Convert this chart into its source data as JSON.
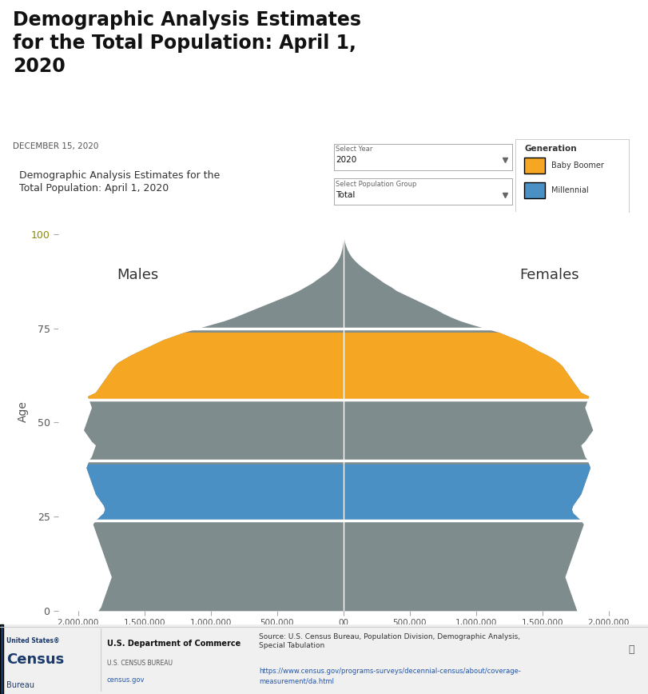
{
  "title_main": "Demographic Analysis Estimates\nfor the Total Population: April 1,\n2020",
  "date_label": "DECEMBER 15, 2020",
  "subtitle": "Demographic Analysis Estimates for the\nTotal Population: April 1, 2020",
  "males_label": "Males",
  "females_label": "Females",
  "ylabel_age": "Age",
  "x_ticks": [
    -2000000,
    -1500000,
    -1000000,
    -500000,
    0,
    500000,
    1000000,
    1500000,
    2000000
  ],
  "x_tick_labels": [
    "2,000,000",
    "1,500,000",
    "1,000,000",
    "500,000",
    "00",
    "500,000",
    "1,000,000",
    "1,500,000",
    "2,000,000"
  ],
  "y_ticks": [
    0,
    25,
    50,
    75,
    100
  ],
  "xlim": [
    -2150000,
    2150000
  ],
  "ylim": [
    0,
    106
  ],
  "color_gray": "#7F8C8D",
  "color_orange": "#F5A623",
  "color_blue": "#4A90C4",
  "background_color": "#FFFFFF",
  "source_text": "Source: U.S. Census Bureau, Population Division, Demographic Analysis,\nSpecial Tabulation",
  "url_text": "https://www.census.gov/programs-surveys/decennial-census/about/coverage-\nmeasurement/da.html",
  "legend_title": "Generation",
  "legend_items": [
    "Baby Boomer",
    "Millennial"
  ],
  "legend_colors": [
    "#F5A623",
    "#4A90C4"
  ],
  "select_year_label": "Select Year",
  "select_year_value": "2020",
  "select_group_label": "Select Population Group",
  "select_group_value": "Total",
  "boomer_min": 56,
  "boomer_max": 74,
  "millennial_min": 24,
  "millennial_max": 39,
  "ages": [
    0,
    1,
    2,
    3,
    4,
    5,
    6,
    7,
    8,
    9,
    10,
    11,
    12,
    13,
    14,
    15,
    16,
    17,
    18,
    19,
    20,
    21,
    22,
    23,
    24,
    25,
    26,
    27,
    28,
    29,
    30,
    31,
    32,
    33,
    34,
    35,
    36,
    37,
    38,
    39,
    40,
    41,
    42,
    43,
    44,
    45,
    46,
    47,
    48,
    49,
    50,
    51,
    52,
    53,
    54,
    55,
    56,
    57,
    58,
    59,
    60,
    61,
    62,
    63,
    64,
    65,
    66,
    67,
    68,
    69,
    70,
    71,
    72,
    73,
    74,
    75,
    76,
    77,
    78,
    79,
    80,
    81,
    82,
    83,
    84,
    85,
    86,
    87,
    88,
    89,
    90,
    91,
    92,
    93,
    94,
    95,
    96,
    97,
    98,
    99,
    100
  ],
  "male_pop": [
    1850000,
    1830000,
    1820000,
    1810000,
    1800000,
    1790000,
    1780000,
    1770000,
    1760000,
    1750000,
    1760000,
    1770000,
    1780000,
    1790000,
    1800000,
    1810000,
    1820000,
    1830000,
    1840000,
    1850000,
    1860000,
    1870000,
    1880000,
    1890000,
    1870000,
    1840000,
    1810000,
    1800000,
    1810000,
    1830000,
    1850000,
    1870000,
    1880000,
    1890000,
    1900000,
    1910000,
    1920000,
    1930000,
    1940000,
    1930000,
    1920000,
    1900000,
    1890000,
    1880000,
    1870000,
    1900000,
    1920000,
    1940000,
    1960000,
    1950000,
    1940000,
    1930000,
    1920000,
    1910000,
    1900000,
    1910000,
    1920000,
    1930000,
    1870000,
    1850000,
    1830000,
    1810000,
    1790000,
    1770000,
    1750000,
    1730000,
    1700000,
    1650000,
    1600000,
    1540000,
    1480000,
    1420000,
    1360000,
    1280000,
    1200000,
    1100000,
    1000000,
    900000,
    820000,
    750000,
    680000,
    610000,
    540000,
    470000,
    400000,
    340000,
    290000,
    240000,
    200000,
    160000,
    120000,
    90000,
    65000,
    45000,
    30000,
    20000,
    12000,
    7000,
    3000,
    1000,
    500
  ],
  "female_pop": [
    1760000,
    1750000,
    1740000,
    1730000,
    1720000,
    1710000,
    1700000,
    1690000,
    1680000,
    1670000,
    1680000,
    1690000,
    1700000,
    1710000,
    1720000,
    1730000,
    1740000,
    1750000,
    1760000,
    1770000,
    1780000,
    1790000,
    1800000,
    1810000,
    1790000,
    1760000,
    1730000,
    1720000,
    1730000,
    1750000,
    1770000,
    1790000,
    1800000,
    1810000,
    1820000,
    1830000,
    1840000,
    1850000,
    1860000,
    1850000,
    1840000,
    1820000,
    1810000,
    1800000,
    1790000,
    1820000,
    1840000,
    1860000,
    1880000,
    1870000,
    1860000,
    1850000,
    1840000,
    1830000,
    1820000,
    1830000,
    1840000,
    1850000,
    1790000,
    1770000,
    1750000,
    1730000,
    1710000,
    1690000,
    1670000,
    1650000,
    1620000,
    1580000,
    1530000,
    1470000,
    1420000,
    1370000,
    1310000,
    1240000,
    1170000,
    1070000,
    970000,
    880000,
    810000,
    750000,
    700000,
    640000,
    580000,
    520000,
    460000,
    400000,
    360000,
    310000,
    270000,
    230000,
    190000,
    150000,
    115000,
    85000,
    60000,
    42000,
    28000,
    17000,
    8000,
    3000,
    1000
  ]
}
